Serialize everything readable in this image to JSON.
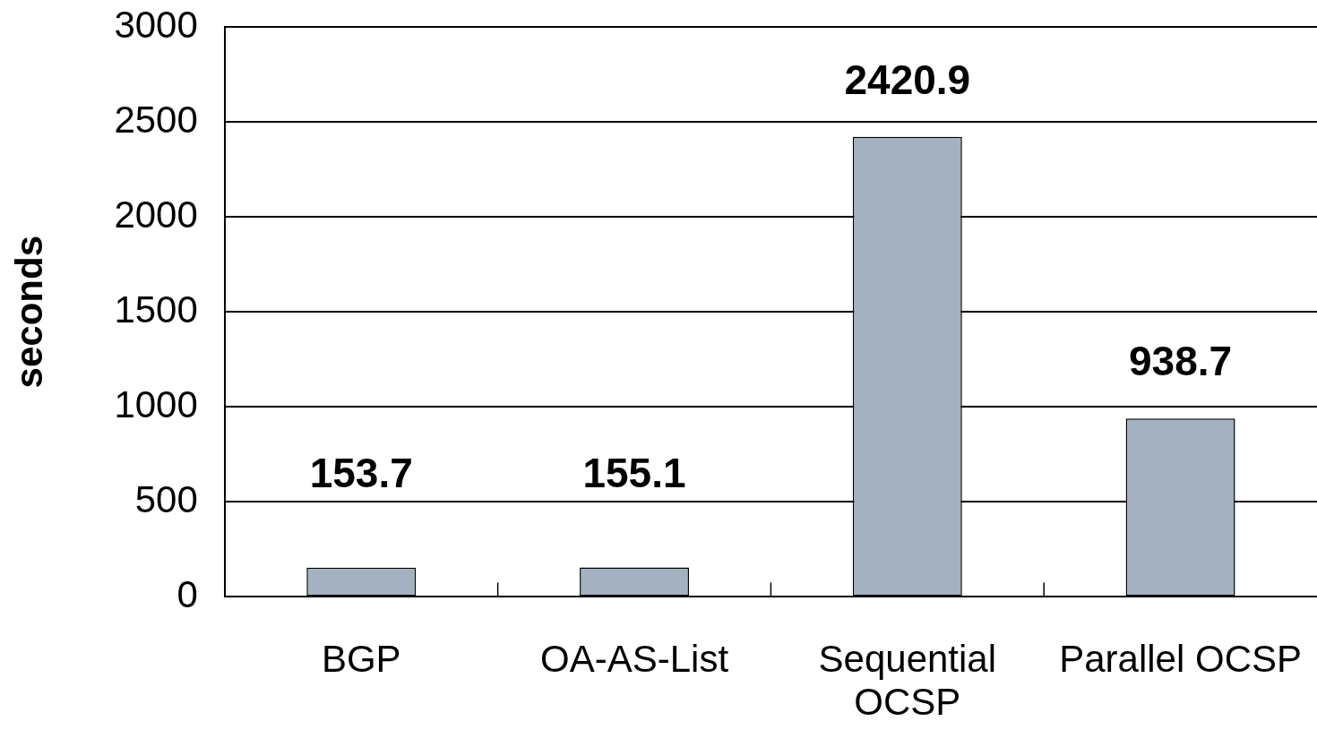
{
  "chart_data": {
    "type": "bar",
    "ylabel": "seconds",
    "categories": [
      "BGP",
      "OA-AS-List",
      "Sequential OCSP",
      "Parallel OCSP"
    ],
    "values": [
      153.7,
      155.1,
      2420.9,
      938.7
    ],
    "color": "#a3b1c0",
    "ylim": [
      0,
      3000
    ],
    "yticks": [
      0,
      500,
      1000,
      1500,
      2000,
      2500,
      3000
    ],
    "grid": "y",
    "data_labels": true
  }
}
